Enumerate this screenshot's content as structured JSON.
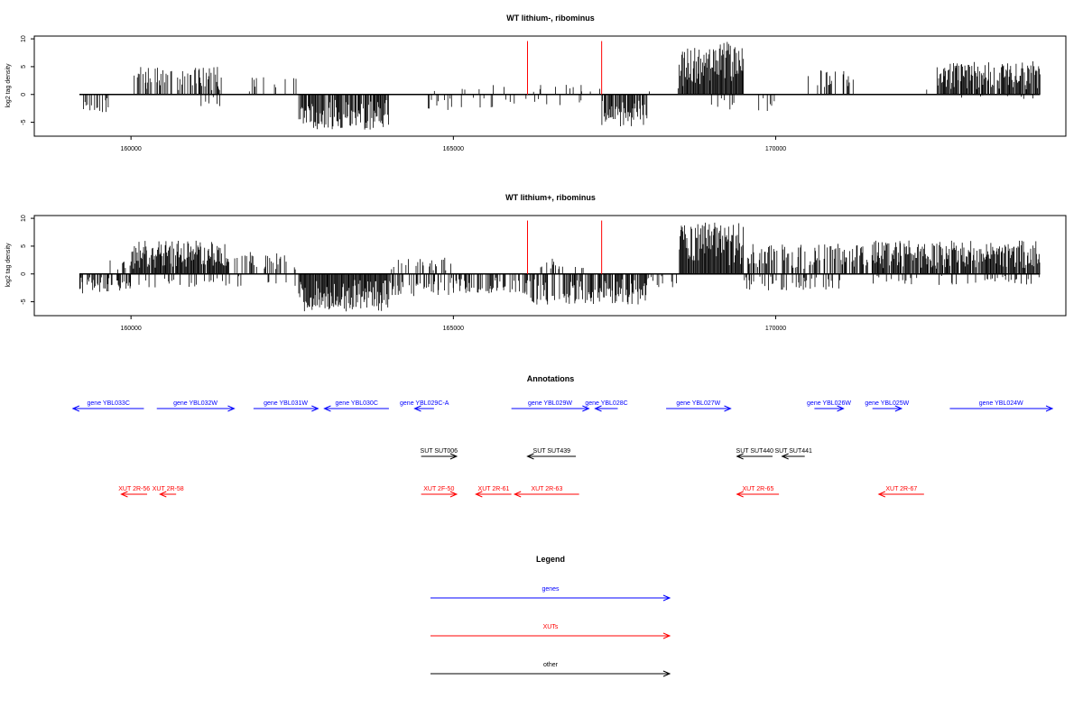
{
  "chart_data": [
    {
      "type": "bar",
      "title": "WT lithium-, ribominus",
      "ylabel": "log2 tag density",
      "xlim": [
        158500,
        174500
      ],
      "ylim": [
        -7.5,
        10.5
      ],
      "xticks": [
        160000,
        165000,
        170000
      ],
      "yticks": [
        -5,
        0,
        5,
        10
      ],
      "grid": false,
      "baseline": {
        "from": 159200,
        "to": 174100
      },
      "marker_lines": [
        166150,
        167300
      ],
      "marker_color": "#ff0000",
      "bar_color": "#000000",
      "regions": [
        {
          "from": 159250,
          "to": 159650,
          "sign": -1,
          "max": 3.2,
          "density": 0.3
        },
        {
          "from": 160050,
          "to": 161400,
          "sign": 1,
          "max": 5.0,
          "density": 0.55
        },
        {
          "from": 161000,
          "to": 161400,
          "sign": -1,
          "max": 2.5,
          "density": 0.15
        },
        {
          "from": 161800,
          "to": 162600,
          "sign": 1,
          "max": 3.2,
          "density": 0.18
        },
        {
          "from": 162600,
          "to": 164000,
          "sign": -1,
          "max": 6.3,
          "density": 0.85
        },
        {
          "from": 164500,
          "to": 166000,
          "sign": 1,
          "max": 2.2,
          "density": 0.08
        },
        {
          "from": 164500,
          "to": 166100,
          "sign": -1,
          "max": 2.8,
          "density": 0.12
        },
        {
          "from": 166100,
          "to": 167300,
          "sign": 1,
          "max": 2.0,
          "density": 0.1
        },
        {
          "from": 166100,
          "to": 167000,
          "sign": -1,
          "max": 2.0,
          "density": 0.06
        },
        {
          "from": 167300,
          "to": 168000,
          "sign": -1,
          "max": 5.8,
          "density": 0.8
        },
        {
          "from": 168000,
          "to": 168500,
          "sign": 1,
          "max": 1.2,
          "density": 0.04
        },
        {
          "from": 168500,
          "to": 169500,
          "sign": 1,
          "max": 9.5,
          "density": 1.0
        },
        {
          "from": 169000,
          "to": 170000,
          "sign": -1,
          "max": 3.0,
          "density": 0.18
        },
        {
          "from": 170500,
          "to": 171200,
          "sign": 1,
          "max": 5.0,
          "density": 0.3
        },
        {
          "from": 171200,
          "to": 172500,
          "sign": 1,
          "max": 2.0,
          "density": 0.04
        },
        {
          "from": 172500,
          "to": 174100,
          "sign": 1,
          "max": 6.0,
          "density": 0.85
        },
        {
          "from": 172500,
          "to": 174100,
          "sign": -1,
          "max": 0.8,
          "density": 0.05
        }
      ]
    },
    {
      "type": "bar",
      "title": "WT lithium+, ribominus",
      "ylabel": "log2 tag density",
      "xlim": [
        158500,
        174500
      ],
      "ylim": [
        -7.5,
        10.5
      ],
      "xticks": [
        160000,
        165000,
        170000
      ],
      "yticks": [
        -5,
        0,
        5,
        10
      ],
      "grid": false,
      "baseline": {
        "from": 159200,
        "to": 174100
      },
      "marker_lines": [
        166150,
        167300
      ],
      "marker_color": "#ff0000",
      "bar_color": "#000000",
      "regions": [
        {
          "from": 159200,
          "to": 160000,
          "sign": -1,
          "max": 3.5,
          "density": 0.55
        },
        {
          "from": 159600,
          "to": 160000,
          "sign": 1,
          "max": 2.5,
          "density": 0.1
        },
        {
          "from": 160000,
          "to": 161500,
          "sign": 1,
          "max": 6.0,
          "density": 0.95
        },
        {
          "from": 160000,
          "to": 161500,
          "sign": -1,
          "max": 2.5,
          "density": 0.2
        },
        {
          "from": 161500,
          "to": 162600,
          "sign": 1,
          "max": 4.0,
          "density": 0.35
        },
        {
          "from": 161500,
          "to": 162600,
          "sign": -1,
          "max": 2.5,
          "density": 0.12
        },
        {
          "from": 162600,
          "to": 164000,
          "sign": -1,
          "max": 6.8,
          "density": 1.0
        },
        {
          "from": 164000,
          "to": 165000,
          "sign": -1,
          "max": 4.0,
          "density": 0.45
        },
        {
          "from": 164000,
          "to": 165000,
          "sign": 1,
          "max": 3.0,
          "density": 0.2
        },
        {
          "from": 165000,
          "to": 166100,
          "sign": -1,
          "max": 3.5,
          "density": 0.4
        },
        {
          "from": 166100,
          "to": 167300,
          "sign": -1,
          "max": 5.5,
          "density": 0.65
        },
        {
          "from": 166100,
          "to": 167300,
          "sign": 1,
          "max": 3.0,
          "density": 0.15
        },
        {
          "from": 167300,
          "to": 168000,
          "sign": -1,
          "max": 5.5,
          "density": 0.75
        },
        {
          "from": 168000,
          "to": 168500,
          "sign": -1,
          "max": 2.5,
          "density": 0.3
        },
        {
          "from": 168500,
          "to": 169500,
          "sign": 1,
          "max": 9.3,
          "density": 1.0
        },
        {
          "from": 169500,
          "to": 171000,
          "sign": -1,
          "max": 3.0,
          "density": 0.35
        },
        {
          "from": 169500,
          "to": 171500,
          "sign": 1,
          "max": 5.5,
          "density": 0.55
        },
        {
          "from": 171500,
          "to": 174100,
          "sign": 1,
          "max": 6.0,
          "density": 0.9
        },
        {
          "from": 171500,
          "to": 174100,
          "sign": -1,
          "max": 2.0,
          "density": 0.2
        }
      ]
    }
  ],
  "annotations": {
    "title": "Annotations",
    "features": [
      {
        "label": "gene YBL033C",
        "class": "genes",
        "dir": "left",
        "from": 159100,
        "to": 160200,
        "lane": 0
      },
      {
        "label": "gene YBL032W",
        "class": "genes",
        "dir": "right",
        "from": 160400,
        "to": 161600,
        "lane": 0
      },
      {
        "label": "gene YBL031W",
        "class": "genes",
        "dir": "right",
        "from": 161900,
        "to": 162900,
        "lane": 0
      },
      {
        "label": "gene YBL030C",
        "class": "genes",
        "dir": "left",
        "from": 163000,
        "to": 164000,
        "lane": 0
      },
      {
        "label": "gene YBL029C-A",
        "class": "genes",
        "dir": "left",
        "from": 164400,
        "to": 164700,
        "lane": 0
      },
      {
        "label": "gene YBL029W",
        "class": "genes",
        "dir": "right",
        "from": 165900,
        "to": 167100,
        "lane": 0
      },
      {
        "label": "gene YBL028C",
        "class": "genes",
        "dir": "left",
        "from": 167200,
        "to": 167550,
        "lane": 0
      },
      {
        "label": "gene YBL027W",
        "class": "genes",
        "dir": "right",
        "from": 168300,
        "to": 169300,
        "lane": 0
      },
      {
        "label": "gene YBL026W",
        "class": "genes",
        "dir": "right",
        "from": 170600,
        "to": 171050,
        "lane": 0
      },
      {
        "label": "gene YBL025W",
        "class": "genes",
        "dir": "right",
        "from": 171500,
        "to": 171950,
        "lane": 0
      },
      {
        "label": "gene YBL024W",
        "class": "genes",
        "dir": "right",
        "from": 172700,
        "to": 174800,
        "lane": 0
      },
      {
        "label": "SUT SUT006",
        "class": "other",
        "dir": "right",
        "from": 164500,
        "to": 165050,
        "lane": 1
      },
      {
        "label": "SUT SUT439",
        "class": "other",
        "dir": "left",
        "from": 166150,
        "to": 166900,
        "lane": 1
      },
      {
        "label": "SUT SUT440",
        "class": "other",
        "dir": "left",
        "from": 169400,
        "to": 169950,
        "lane": 1
      },
      {
        "label": "SUT SUT441",
        "class": "other",
        "dir": "left",
        "from": 170100,
        "to": 170450,
        "lane": 1
      },
      {
        "label": "XUT 2R-56",
        "class": "XUTs",
        "dir": "left",
        "from": 159850,
        "to": 160250,
        "lane": 2
      },
      {
        "label": "XUT 2R-58",
        "class": "XUTs",
        "dir": "left",
        "from": 160450,
        "to": 160700,
        "lane": 2
      },
      {
        "label": "XUT 2F-50",
        "class": "XUTs",
        "dir": "right",
        "from": 164500,
        "to": 165050,
        "lane": 2
      },
      {
        "label": "XUT 2R-61",
        "class": "XUTs",
        "dir": "left",
        "from": 165350,
        "to": 165900,
        "lane": 2
      },
      {
        "label": "XUT 2R-63",
        "class": "XUTs",
        "dir": "left",
        "from": 165950,
        "to": 166950,
        "lane": 2
      },
      {
        "label": "XUT 2R-65",
        "class": "XUTs",
        "dir": "left",
        "from": 169400,
        "to": 170050,
        "lane": 2
      },
      {
        "label": "XUT 2R-67",
        "class": "XUTs",
        "dir": "left",
        "from": 171600,
        "to": 172300,
        "lane": 2
      }
    ]
  },
  "legend": {
    "title": "Legend",
    "entries": [
      {
        "label": "genes",
        "color": "#0000ff"
      },
      {
        "label": "XUTs",
        "color": "#ff0000"
      },
      {
        "label": "other",
        "color": "#000000"
      }
    ]
  },
  "colors": {
    "genes": "#0000ff",
    "XUTs": "#ff0000",
    "other": "#000000"
  }
}
